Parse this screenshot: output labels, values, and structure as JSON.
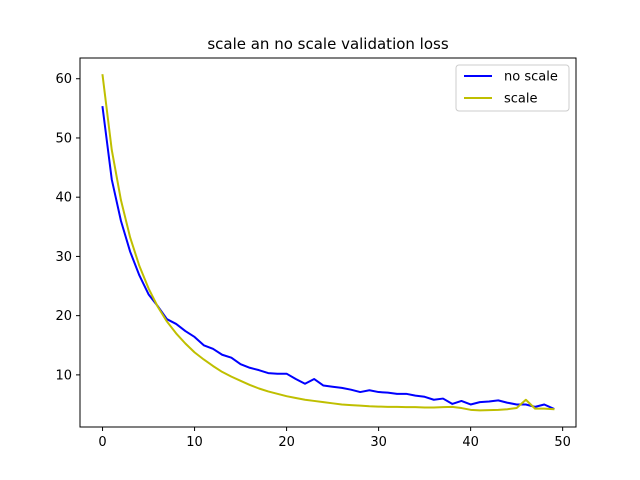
{
  "chart_data": {
    "type": "line",
    "title": "scale an no scale validation loss",
    "xlabel": "",
    "ylabel": "",
    "xlim": [
      -2.45,
      51.45
    ],
    "ylim": [
      1.2,
      63.5
    ],
    "xticks": [
      0,
      10,
      20,
      30,
      40,
      50
    ],
    "yticks": [
      10,
      20,
      30,
      40,
      50,
      60
    ],
    "grid": false,
    "legend_position": "top-right",
    "series": [
      {
        "name": "no scale",
        "color": "#0000ff",
        "x": [
          0,
          1,
          2,
          3,
          4,
          5,
          6,
          7,
          8,
          9,
          10,
          11,
          12,
          13,
          14,
          15,
          16,
          17,
          18,
          19,
          20,
          21,
          22,
          23,
          24,
          25,
          26,
          27,
          28,
          29,
          30,
          31,
          32,
          33,
          34,
          35,
          36,
          37,
          38,
          39,
          40,
          41,
          42,
          43,
          44,
          45,
          46,
          47,
          48,
          49
        ],
        "values": [
          55.2,
          43.0,
          36.0,
          30.8,
          26.8,
          23.6,
          21.6,
          19.4,
          18.6,
          17.4,
          16.4,
          15.0,
          14.4,
          13.4,
          12.9,
          11.8,
          11.2,
          10.8,
          10.3,
          10.2,
          10.2,
          9.3,
          8.5,
          9.3,
          8.2,
          8.0,
          7.8,
          7.5,
          7.1,
          7.4,
          7.1,
          7.0,
          6.8,
          6.8,
          6.5,
          6.3,
          5.8,
          6.0,
          5.1,
          5.6,
          5.0,
          5.4,
          5.5,
          5.7,
          5.3,
          5.0,
          5.0,
          4.6,
          5.0,
          4.3
        ]
      },
      {
        "name": "scale",
        "color": "#bfbf00",
        "x": [
          0,
          1,
          2,
          3,
          4,
          5,
          6,
          7,
          8,
          9,
          10,
          11,
          12,
          13,
          14,
          15,
          16,
          17,
          18,
          19,
          20,
          21,
          22,
          23,
          24,
          25,
          26,
          27,
          28,
          29,
          30,
          31,
          32,
          33,
          34,
          35,
          36,
          37,
          38,
          39,
          40,
          41,
          42,
          43,
          44,
          45,
          46,
          47,
          48,
          49
        ],
        "values": [
          60.6,
          48.0,
          39.5,
          33.2,
          28.4,
          24.6,
          21.5,
          19.0,
          17.0,
          15.3,
          13.8,
          12.6,
          11.5,
          10.5,
          9.7,
          9.0,
          8.3,
          7.7,
          7.2,
          6.8,
          6.4,
          6.1,
          5.8,
          5.6,
          5.4,
          5.2,
          5.0,
          4.9,
          4.8,
          4.7,
          4.65,
          4.6,
          4.6,
          4.55,
          4.55,
          4.5,
          4.5,
          4.55,
          4.6,
          4.4,
          4.1,
          4.0,
          4.05,
          4.1,
          4.2,
          4.4,
          5.8,
          4.3,
          4.3,
          4.2
        ]
      }
    ]
  }
}
